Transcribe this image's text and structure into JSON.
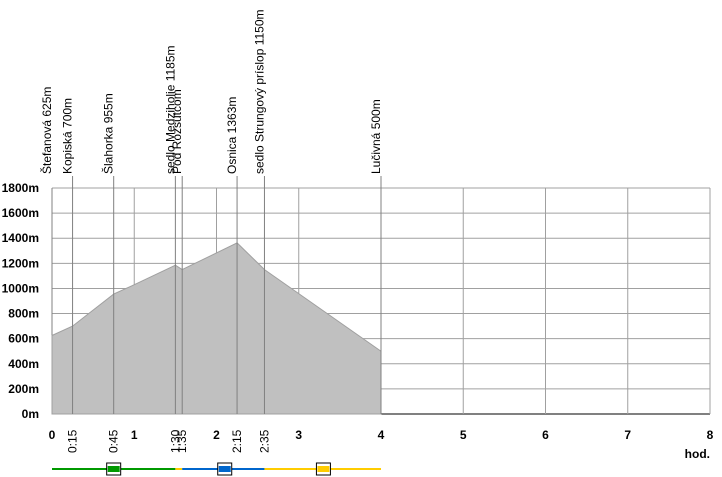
{
  "chart_data": {
    "type": "area",
    "x_unit_label": "hod.",
    "ylim": [
      0,
      1800
    ],
    "xlim": [
      0,
      8
    ],
    "y_ticks": [
      {
        "value": 0,
        "label": "0m"
      },
      {
        "value": 200,
        "label": "200m"
      },
      {
        "value": 400,
        "label": "400m"
      },
      {
        "value": 600,
        "label": "600m"
      },
      {
        "value": 800,
        "label": "800m"
      },
      {
        "value": 1000,
        "label": "1000m"
      },
      {
        "value": 1200,
        "label": "1200m"
      },
      {
        "value": 1400,
        "label": "1400m"
      },
      {
        "value": 1600,
        "label": "1600m"
      },
      {
        "value": 1800,
        "label": "1800m"
      }
    ],
    "x_ticks": [
      {
        "value": 0,
        "label": "0"
      },
      {
        "value": 1,
        "label": "1"
      },
      {
        "value": 2,
        "label": "2"
      },
      {
        "value": 3,
        "label": "3"
      },
      {
        "value": 4,
        "label": "4"
      },
      {
        "value": 5,
        "label": "5"
      },
      {
        "value": 6,
        "label": "6"
      },
      {
        "value": 7,
        "label": "7"
      },
      {
        "value": 8,
        "label": "8"
      }
    ],
    "waypoint_time_labels": [
      {
        "value": 0.25,
        "label": "0:15"
      },
      {
        "value": 0.75,
        "label": "0:45"
      },
      {
        "value": 1.5,
        "label": "1:30"
      },
      {
        "value": 1.583,
        "label": "1:35"
      },
      {
        "value": 2.25,
        "label": "2:15"
      },
      {
        "value": 2.583,
        "label": "2:35"
      }
    ],
    "profile": [
      {
        "x": 0,
        "y": 625
      },
      {
        "x": 0.25,
        "y": 700
      },
      {
        "x": 0.75,
        "y": 955
      },
      {
        "x": 1.0,
        "y": 1030
      },
      {
        "x": 1.5,
        "y": 1185
      },
      {
        "x": 1.583,
        "y": 1150
      },
      {
        "x": 2.25,
        "y": 1363
      },
      {
        "x": 2.583,
        "y": 1150
      },
      {
        "x": 4.0,
        "y": 500
      }
    ],
    "waypoints": [
      {
        "x": 0,
        "label": "Štefanová 625m"
      },
      {
        "x": 0.25,
        "label": "Kopiská 700m"
      },
      {
        "x": 0.75,
        "label": "Šlahorka 955m"
      },
      {
        "x": 1.5,
        "label": "sedlo Medziholie 1185m"
      },
      {
        "x": 1.583,
        "label": "Pod Rozsutcom"
      },
      {
        "x": 2.25,
        "label": "Osnica 1363m"
      },
      {
        "x": 2.583,
        "label": "sedlo Strungový príslop 1150m"
      },
      {
        "x": 4.0,
        "label": "Lučivná 500m"
      }
    ],
    "trail_segments": [
      {
        "from": 0,
        "to": 1.5,
        "color": "#009900"
      },
      {
        "from": 1.5,
        "to": 1.583,
        "color": "#ffcc00"
      },
      {
        "from": 1.583,
        "to": 2.583,
        "color": "#0066cc"
      },
      {
        "from": 2.583,
        "to": 4.0,
        "color": "#ffcc00"
      }
    ],
    "trail_markers": [
      {
        "x": 0.75,
        "color": "#009900"
      },
      {
        "x": 2.1,
        "color": "#0066cc"
      },
      {
        "x": 3.3,
        "color": "#ffcc00"
      }
    ],
    "colors": {
      "fill": "#c0c0c0",
      "grid": "#a0a0a0",
      "vline": "#808080"
    },
    "grid": true
  }
}
